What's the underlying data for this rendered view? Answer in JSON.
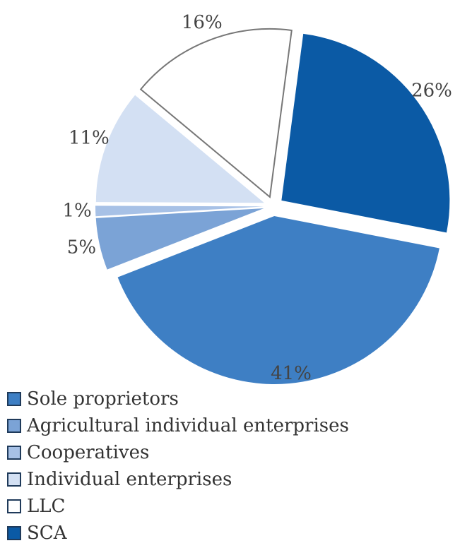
{
  "chart_data": {
    "type": "pie",
    "title": "",
    "exploded": true,
    "slices": [
      {
        "name": "SCA",
        "value": 26,
        "label": "26%",
        "color": "#0b5aa5"
      },
      {
        "name": "Sole proprietors",
        "value": 41,
        "label": "41%",
        "color": "#3e7fc4"
      },
      {
        "name": "Agricultural individual enterprises",
        "value": 5,
        "label": "5%",
        "color": "#7ba3d6"
      },
      {
        "name": "Cooperatives",
        "value": 1,
        "label": "1%",
        "color": "#a7c1e6"
      },
      {
        "name": "Individual enterprises",
        "value": 11,
        "label": "11%",
        "color": "#d3e0f3"
      },
      {
        "name": "LLC",
        "value": 16,
        "label": "16%",
        "color": "#ffffff"
      }
    ],
    "legend": {
      "placement": "bottom-left",
      "items": [
        {
          "label": "Sole proprietors",
          "color": "#3e7fc4"
        },
        {
          "label": "Agricultural individual enterprises",
          "color": "#7ba3d6"
        },
        {
          "label": "Cooperatives",
          "color": "#a7c1e6"
        },
        {
          "label": "Individual enterprises",
          "color": "#d3e0f3"
        },
        {
          "label": "LLC",
          "color": "#ffffff"
        },
        {
          "label": "SCA",
          "color": "#0b5aa5"
        }
      ]
    }
  }
}
